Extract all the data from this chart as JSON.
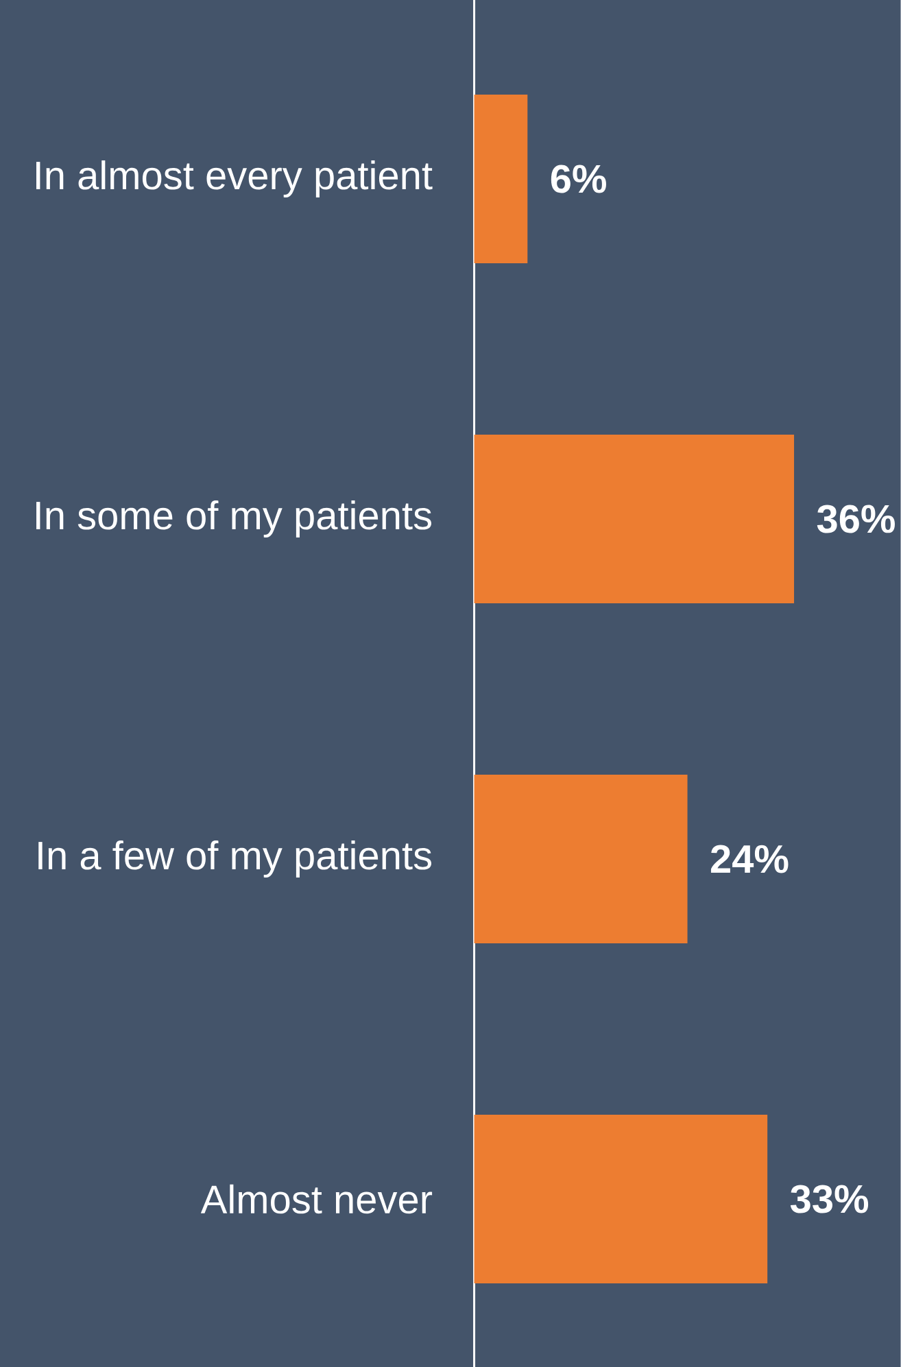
{
  "chart_data": {
    "type": "bar",
    "orientation": "horizontal",
    "categories": [
      "In almost every patient",
      "In some of my patients",
      "In a few of my patients",
      "Almost never"
    ],
    "values": [
      6,
      36,
      24,
      33
    ],
    "value_labels": [
      "6%",
      "36%",
      "24%",
      "33%"
    ],
    "color": "#ed7d31",
    "xlim": [
      0,
      48
    ],
    "tick_labels": "y"
  }
}
